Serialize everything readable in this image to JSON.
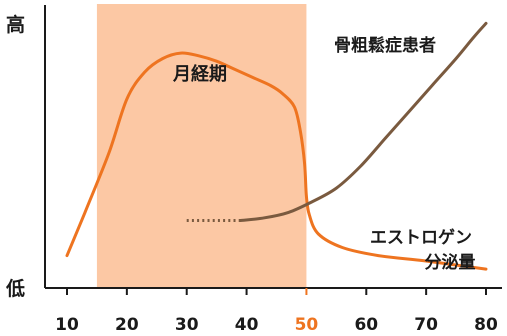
{
  "chart_data": {
    "type": "line",
    "x_ticks": [
      10,
      20,
      30,
      40,
      50,
      60,
      70,
      80
    ],
    "highlight_tick": 50,
    "xlim": [
      10,
      80
    ],
    "y_top_label": "高",
    "y_bottom_label": "低",
    "shaded_region": {
      "label": "月経期",
      "x_start": 15,
      "x_end": 50
    },
    "series": [
      {
        "name": "エストロゲン",
        "name_line2": "分泌量",
        "color": "#ee7420",
        "x": [
          10,
          13,
          17,
          20,
          23,
          26,
          29,
          32,
          35,
          38,
          41,
          44,
          46,
          48,
          49,
          49.7,
          50,
          50.5,
          52,
          56,
          62,
          70,
          80
        ],
        "y": [
          0.12,
          0.28,
          0.5,
          0.7,
          0.8,
          0.85,
          0.87,
          0.86,
          0.84,
          0.81,
          0.78,
          0.75,
          0.72,
          0.67,
          0.58,
          0.46,
          0.34,
          0.27,
          0.2,
          0.15,
          0.12,
          0.1,
          0.07
        ]
      },
      {
        "name": "骨粗鬆症患者",
        "color": "#7a5a3f",
        "dotted_x": [
          30,
          39
        ],
        "x": [
          39,
          43,
          47,
          51,
          55,
          59,
          63,
          67,
          71,
          75,
          78,
          80
        ],
        "y": [
          0.25,
          0.26,
          0.28,
          0.32,
          0.37,
          0.45,
          0.55,
          0.65,
          0.75,
          0.85,
          0.93,
          0.98
        ]
      }
    ],
    "colors": {
      "shade": "#fcc8a4",
      "axis": "#1a1a1a",
      "highlight_tick": "#ee7420"
    }
  }
}
